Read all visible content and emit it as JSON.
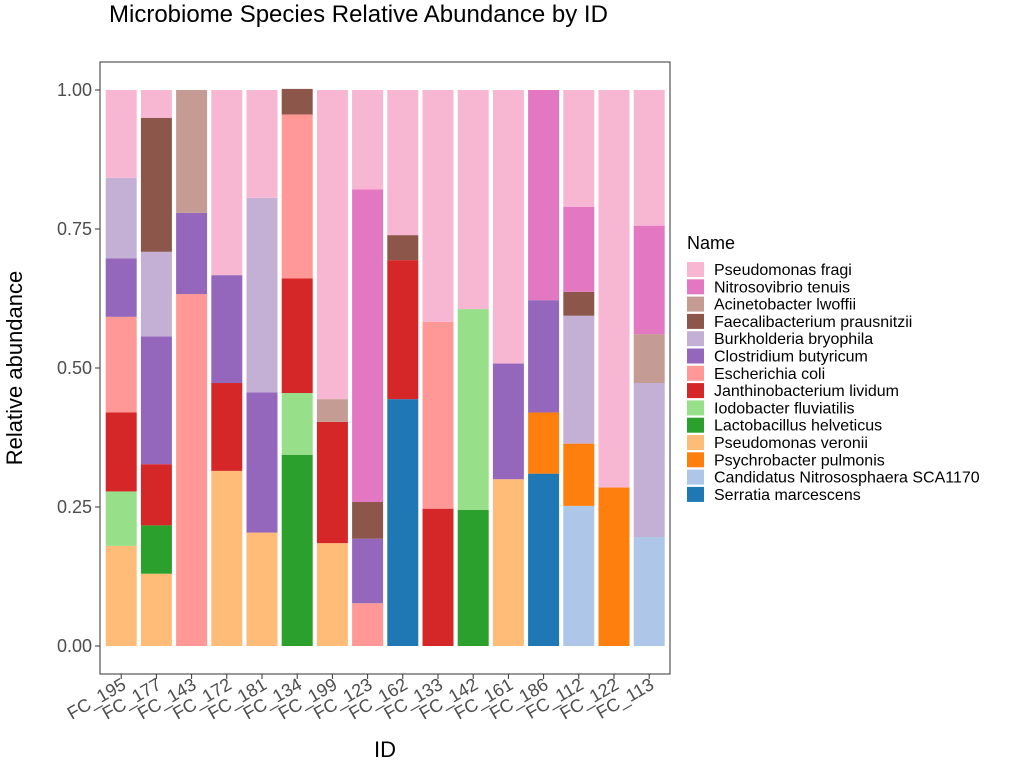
{
  "chart_data": {
    "type": "bar",
    "stacked": true,
    "title": "Microbiome Species Relative Abundance by ID",
    "xlabel": "ID",
    "ylabel": "Relative abundance",
    "ylim": [
      0,
      1
    ],
    "yticks": [
      "0.00",
      "0.25",
      "0.50",
      "0.75",
      "1.00"
    ],
    "grid": false,
    "legend_position": "right",
    "legend_title": "Name",
    "categories": [
      "FC_195",
      "FC_177",
      "FC_143",
      "FC_172",
      "FC_181",
      "FC_134",
      "FC_199",
      "FC_123",
      "FC_162",
      "FC_133",
      "FC_142",
      "FC_161",
      "FC_186",
      "FC_112",
      "FC_122",
      "FC_113"
    ],
    "series": [
      {
        "name": "Serratia marcescens",
        "color": "#1f77b4",
        "values": [
          0,
          0,
          0,
          0,
          0,
          0,
          0,
          0,
          0.444,
          0,
          0,
          0,
          0.31,
          0,
          0,
          0
        ]
      },
      {
        "name": "Candidatus Nitrososphaera SCA1170",
        "color": "#aec7e8",
        "values": [
          0,
          0,
          0,
          0,
          0,
          0,
          0,
          0,
          0,
          0,
          0,
          0,
          0,
          0.252,
          0,
          0.196
        ]
      },
      {
        "name": "Psychrobacter pulmonis",
        "color": "#ff7f0e",
        "values": [
          0,
          0,
          0,
          0,
          0,
          0,
          0,
          0,
          0,
          0,
          0,
          0,
          0.11,
          0.112,
          0.285,
          0
        ]
      },
      {
        "name": "Pseudomonas veronii",
        "color": "#ffbb78",
        "values": [
          0.18,
          0.13,
          0,
          0.315,
          0.204,
          0,
          0.185,
          0,
          0,
          0,
          0,
          0.3,
          0,
          0,
          0,
          0
        ]
      },
      {
        "name": "Lactobacillus helveticus",
        "color": "#2ca02c",
        "values": [
          0,
          0.087,
          0,
          0,
          0,
          0.344,
          0,
          0,
          0,
          0,
          0.245,
          0,
          0,
          0,
          0,
          0
        ]
      },
      {
        "name": "Iodobacter fluviatilis",
        "color": "#98df8a",
        "values": [
          0.098,
          0,
          0,
          0,
          0,
          0.111,
          0,
          0,
          0,
          0,
          0.361,
          0,
          0,
          0,
          0,
          0
        ]
      },
      {
        "name": "Janthinobacterium lividum",
        "color": "#d62728",
        "values": [
          0.142,
          0.11,
          0,
          0.158,
          0,
          0.206,
          0.218,
          0,
          0.25,
          0.247,
          0,
          0,
          0,
          0,
          0,
          0
        ]
      },
      {
        "name": "Escherichia coli",
        "color": "#ff9896",
        "values": [
          0.172,
          0,
          0.633,
          0,
          0,
          0.295,
          0,
          0.077,
          0,
          0.336,
          0,
          0,
          0,
          0,
          0,
          0
        ]
      },
      {
        "name": "Clostridium butyricum",
        "color": "#9467bd",
        "values": [
          0.105,
          0.23,
          0.146,
          0.194,
          0.252,
          0,
          0,
          0.116,
          0,
          0,
          0,
          0.208,
          0.202,
          0,
          0,
          0
        ]
      },
      {
        "name": "Burkholderia bryophila",
        "color": "#c5b0d5",
        "values": [
          0.145,
          0.152,
          0,
          0,
          0.35,
          0,
          0,
          0,
          0,
          0,
          0,
          0,
          0,
          0.23,
          0,
          0.277
        ]
      },
      {
        "name": "Faecalibacterium prausnitzii",
        "color": "#8c564b",
        "values": [
          0,
          0.241,
          0,
          0,
          0,
          0.046,
          0,
          0.066,
          0.045,
          0,
          0,
          0,
          0,
          0.043,
          0,
          0
        ]
      },
      {
        "name": "Acinetobacter lwoffii",
        "color": "#c49c94",
        "values": [
          0,
          0,
          0.221,
          0,
          0,
          0,
          0.041,
          0,
          0,
          0,
          0,
          0,
          0,
          0,
          0,
          0.088
        ]
      },
      {
        "name": "Nitrosovibrio tenuis",
        "color": "#e377c2",
        "values": [
          0,
          0,
          0,
          0,
          0,
          0,
          0,
          0.562,
          0,
          0,
          0,
          0,
          0.378,
          0.153,
          0,
          0.195
        ]
      },
      {
        "name": "Pseudomonas fragi",
        "color": "#f7b6d2",
        "values": [
          0.158,
          0.05,
          0,
          0.333,
          0.194,
          0,
          0.556,
          0.179,
          0.261,
          0.417,
          0.394,
          0.492,
          0,
          0.21,
          0.715,
          0.244
        ]
      }
    ],
    "legend_order": [
      "Pseudomonas fragi",
      "Nitrosovibrio tenuis",
      "Acinetobacter lwoffii",
      "Faecalibacterium prausnitzii",
      "Burkholderia bryophila",
      "Clostridium butyricum",
      "Escherichia coli",
      "Janthinobacterium lividum",
      "Iodobacter fluviatilis",
      "Lactobacillus helveticus",
      "Pseudomonas veronii",
      "Psychrobacter pulmonis",
      "Candidatus Nitrososphaera SCA1170",
      "Serratia marcescens"
    ]
  }
}
